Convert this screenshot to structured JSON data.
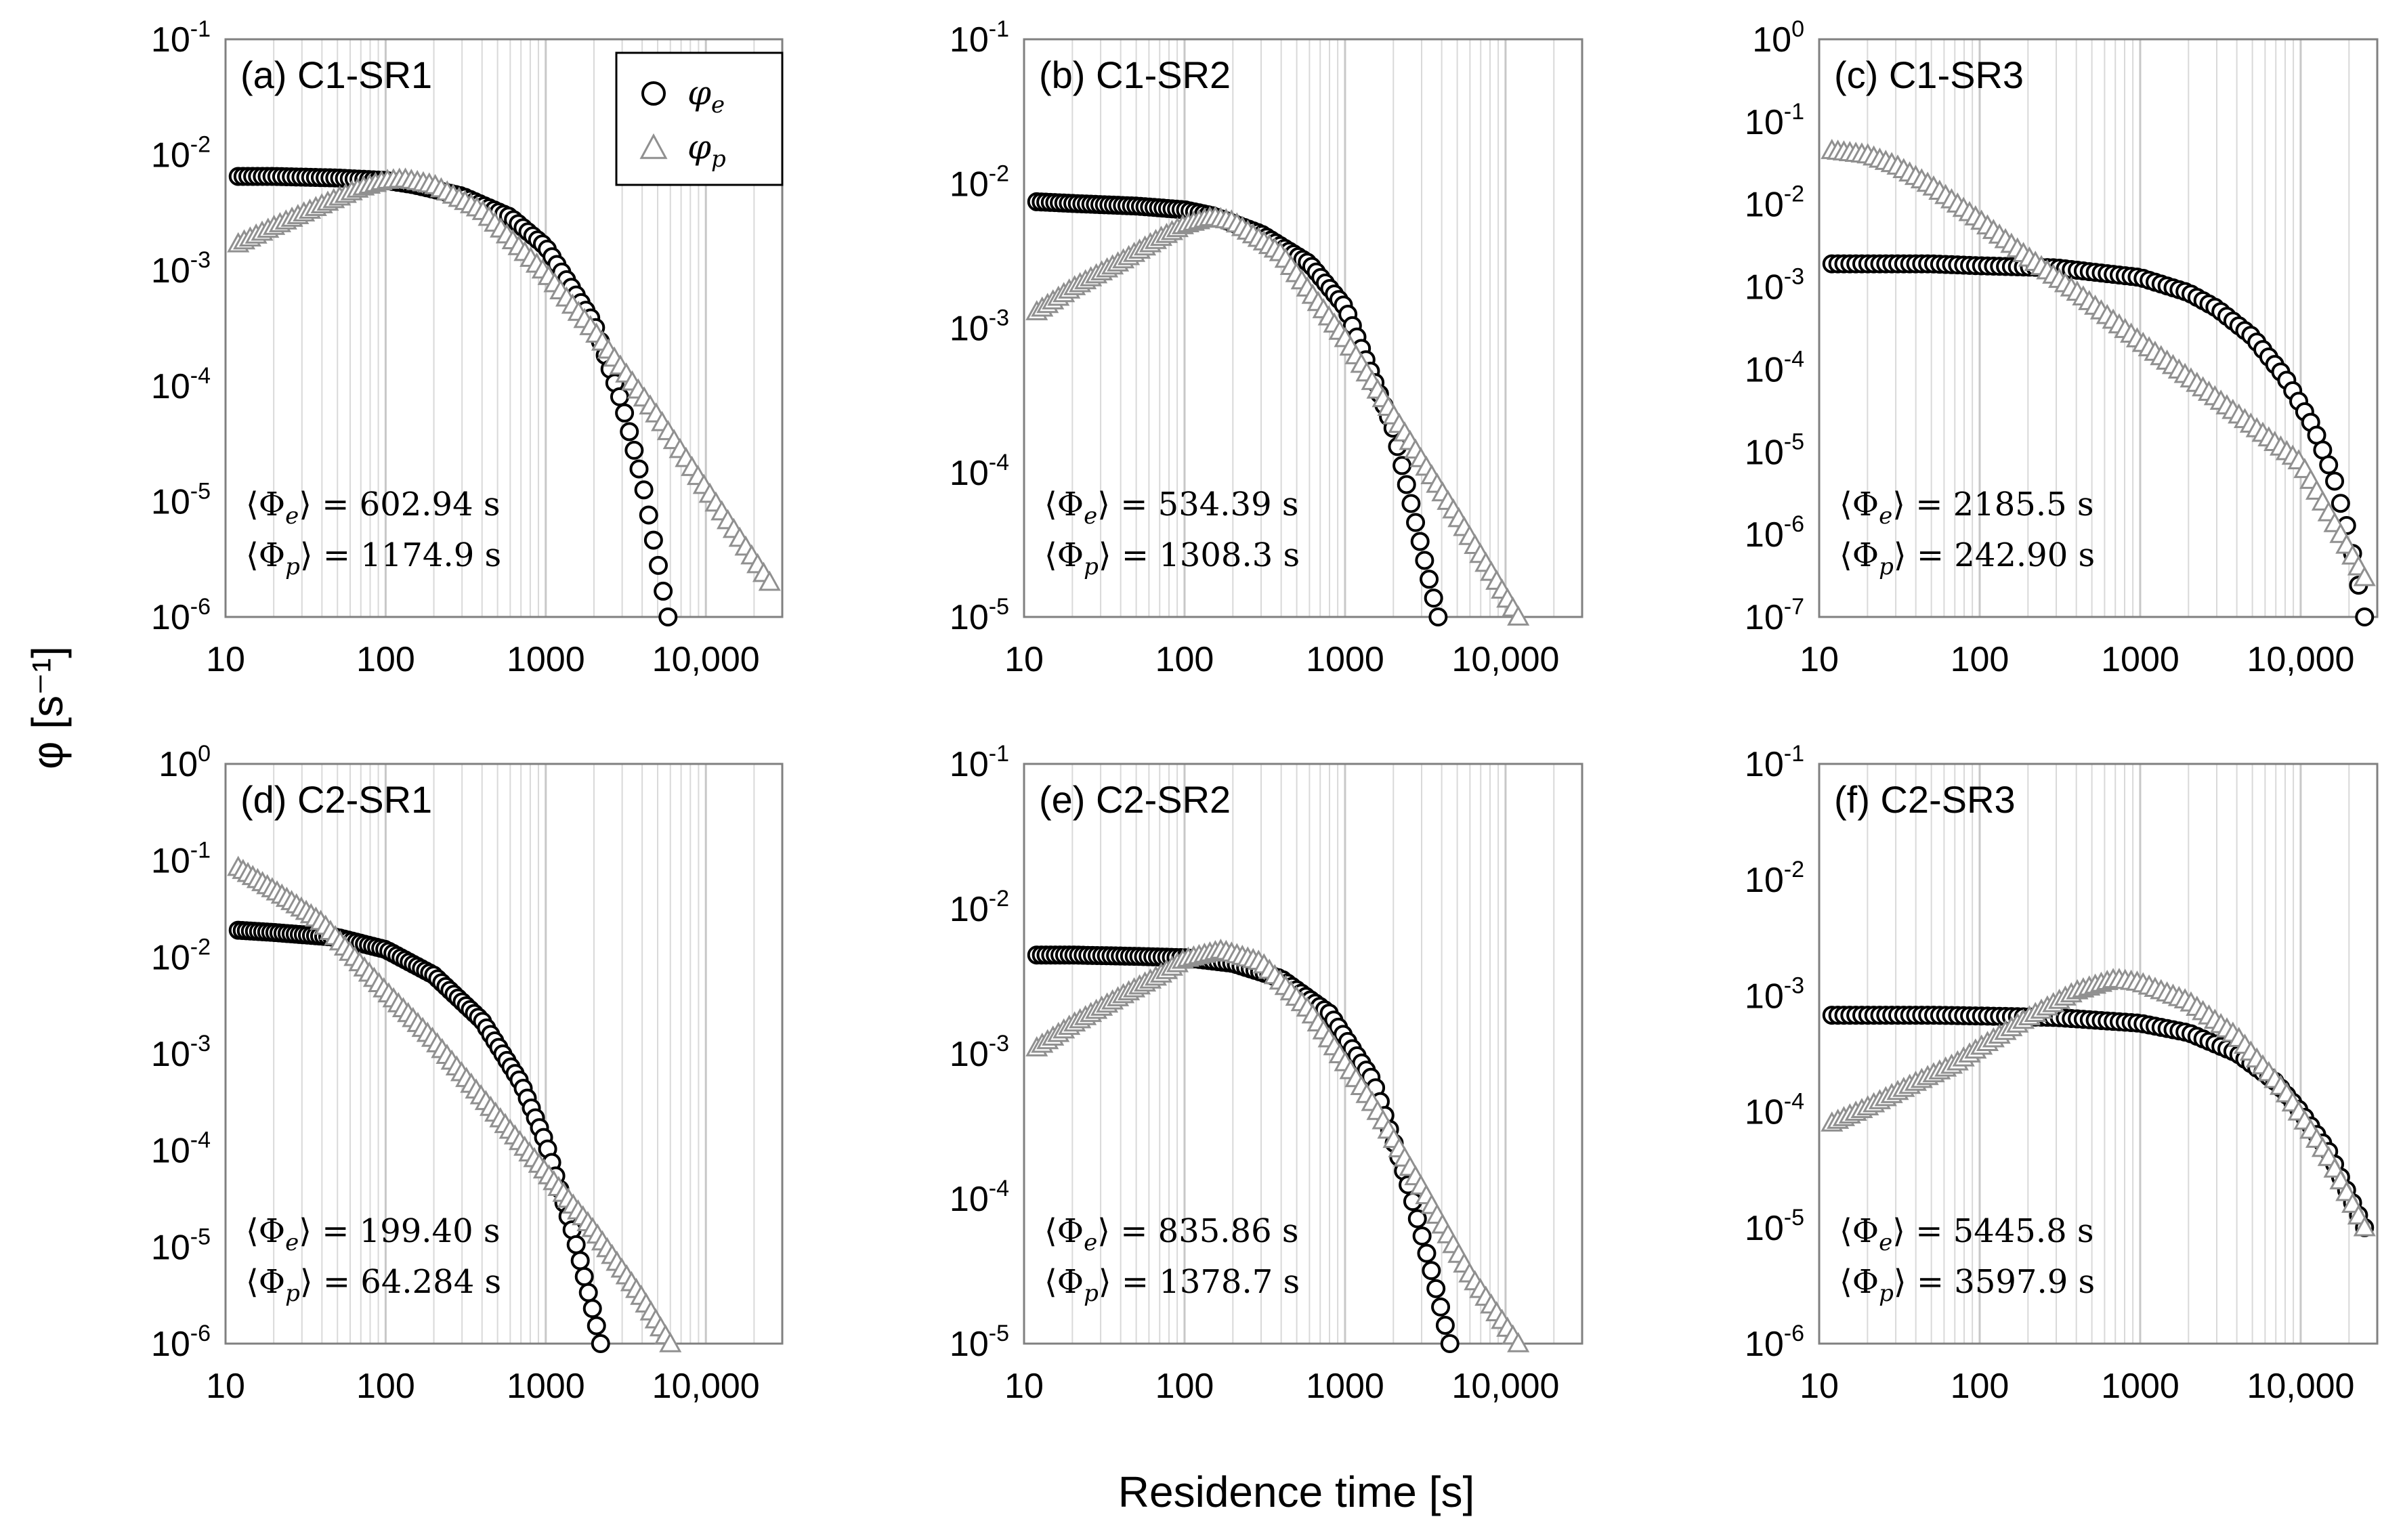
{
  "figure": {
    "xlabel": "Residence time  [s]",
    "ylabel": "φ [s⁻¹]",
    "legend": [
      {
        "key": "phi_e",
        "symbol": "circle",
        "label": "φ",
        "sub": "e"
      },
      {
        "key": "phi_p",
        "symbol": "triangle",
        "label": "φ",
        "sub": "p"
      }
    ],
    "colors": {
      "phi_e": "#000000",
      "phi_p": "#909090",
      "grid": "#d9d9d9",
      "axis": "#808080"
    }
  },
  "chart_data": [
    {
      "type": "scatter",
      "title": "(a) C1-SR1",
      "xscale": "log",
      "xlim": [
        10,
        30000
      ],
      "xticks": [
        "10",
        "100",
        "1000",
        "10,000"
      ],
      "yscale": "log",
      "ylim_exp": [
        -6,
        -1
      ],
      "series": [
        {
          "name": "φe",
          "x": [
            12,
            20,
            50,
            100,
            150,
            300,
            600,
            1000,
            2000,
            3000,
            4000,
            5000,
            5800
          ],
          "y": [
            0.0065,
            0.0065,
            0.0063,
            0.006,
            0.0055,
            0.0044,
            0.0029,
            0.0016,
            0.00035,
            7e-05,
            1.5e-05,
            3e-06,
            1e-06
          ]
        },
        {
          "name": "φp",
          "x": [
            12,
            20,
            40,
            70,
            100,
            130,
            200,
            400,
            1000,
            2000,
            5000,
            10000,
            25000
          ],
          "y": [
            0.0017,
            0.0024,
            0.0037,
            0.0052,
            0.006,
            0.0062,
            0.0055,
            0.0033,
            0.00095,
            0.0003,
            5.5e-05,
            1.3e-05,
            2e-06
          ]
        }
      ],
      "annotations": [
        {
          "sym": "Φ",
          "sub": "e",
          "value": "602.94 s"
        },
        {
          "sym": "Φ",
          "sub": "p",
          "value": "1174.9 s"
        }
      ],
      "legend_placement": "top-right"
    },
    {
      "type": "scatter",
      "title": "(b) C1-SR2",
      "xscale": "log",
      "xlim": [
        10,
        30000
      ],
      "xticks": [
        "10",
        "100",
        "1000",
        "10,000"
      ],
      "yscale": "log",
      "ylim_exp": [
        -5,
        -1
      ],
      "series": [
        {
          "name": "φe",
          "x": [
            12,
            20,
            50,
            100,
            150,
            300,
            600,
            1000,
            2000,
            3000,
            3800
          ],
          "y": [
            0.0075,
            0.0073,
            0.007,
            0.0066,
            0.006,
            0.0045,
            0.0028,
            0.0014,
            0.0002,
            3e-05,
            1e-05
          ]
        },
        {
          "name": "φp",
          "x": [
            12,
            20,
            40,
            70,
            100,
            150,
            200,
            400,
            1000,
            2000,
            5000,
            12000
          ],
          "y": [
            0.0013,
            0.0019,
            0.0029,
            0.0042,
            0.0052,
            0.0059,
            0.0055,
            0.0033,
            0.00085,
            0.00025,
            5e-05,
            1e-05
          ]
        }
      ],
      "annotations": [
        {
          "sym": "Φ",
          "sub": "e",
          "value": "534.39 s"
        },
        {
          "sym": "Φ",
          "sub": "p",
          "value": "1308.3 s"
        }
      ]
    },
    {
      "type": "scatter",
      "title": "(c) C1-SR3",
      "xscale": "log",
      "xlim": [
        10,
        30000
      ],
      "xticks": [
        "10",
        "100",
        "1000",
        "10,000"
      ],
      "yscale": "log",
      "ylim_exp": [
        -7,
        0
      ],
      "series": [
        {
          "name": "φe",
          "x": [
            12,
            50,
            100,
            300,
            1000,
            2000,
            3000,
            5000,
            8000,
            12000,
            16000,
            20000,
            25000
          ],
          "y": [
            0.0019,
            0.0019,
            0.0018,
            0.0017,
            0.0013,
            0.00085,
            0.00055,
            0.00025,
            8e-05,
            2e-05,
            5e-06,
            1e-06,
            1e-07
          ]
        },
        {
          "name": "φp",
          "x": [
            12,
            20,
            30,
            50,
            100,
            200,
            400,
            1000,
            3000,
            10000,
            25000
          ],
          "y": [
            0.045,
            0.04,
            0.03,
            0.017,
            0.0065,
            0.0023,
            0.00088,
            0.00022,
            4.5e-05,
            7.5e-06,
            3e-07
          ]
        }
      ],
      "annotations": [
        {
          "sym": "Φ",
          "sub": "e",
          "value": "2185.5 s"
        },
        {
          "sym": "Φ",
          "sub": "p",
          "value": "242.90 s"
        }
      ]
    },
    {
      "type": "scatter",
      "title": "(d) C2-SR1",
      "xscale": "log",
      "xlim": [
        10,
        30000
      ],
      "xticks": [
        "10",
        "100",
        "1000",
        "10,000"
      ],
      "yscale": "log",
      "ylim_exp": [
        -6,
        0
      ],
      "series": [
        {
          "name": "φe",
          "x": [
            12,
            20,
            50,
            100,
            200,
            400,
            700,
            1000,
            1500,
            2000,
            2200
          ],
          "y": [
            0.019,
            0.018,
            0.016,
            0.012,
            0.0065,
            0.0022,
            0.0005,
            0.00012,
            1.3e-05,
            2e-06,
            1e-06
          ]
        },
        {
          "name": "φp",
          "x": [
            12,
            20,
            30,
            40,
            70,
            100,
            200,
            500,
            1000,
            2000,
            4000,
            6000
          ],
          "y": [
            0.085,
            0.05,
            0.032,
            0.023,
            0.0085,
            0.0045,
            0.0014,
            0.00023,
            6e-05,
            1.5e-05,
            3e-06,
            1e-06
          ]
        }
      ],
      "annotations": [
        {
          "sym": "Φ",
          "sub": "e",
          "value": "199.40 s"
        },
        {
          "sym": "Φ",
          "sub": "p",
          "value": "64.284 s"
        }
      ]
    },
    {
      "type": "scatter",
      "title": "(e) C2-SR2",
      "xscale": "log",
      "xlim": [
        10,
        30000
      ],
      "xticks": [
        "10",
        "100",
        "1000",
        "10,000"
      ],
      "yscale": "log",
      "ylim_exp": [
        -5,
        -1
      ],
      "series": [
        {
          "name": "φe",
          "x": [
            12,
            20,
            50,
            100,
            200,
            400,
            800,
            1500,
            2500,
            3500,
            4500
          ],
          "y": [
            0.0048,
            0.0048,
            0.0047,
            0.0046,
            0.0042,
            0.0033,
            0.0019,
            0.00065,
            0.00012,
            3e-05,
            1e-05
          ]
        },
        {
          "name": "φp",
          "x": [
            12,
            20,
            40,
            70,
            100,
            170,
            300,
            600,
            1500,
            3000,
            6000,
            12000
          ],
          "y": [
            0.0011,
            0.0016,
            0.0025,
            0.0035,
            0.0045,
            0.0052,
            0.0043,
            0.002,
            0.00045,
            0.00012,
            3e-05,
            1e-05
          ]
        }
      ],
      "annotations": [
        {
          "sym": "Φ",
          "sub": "e",
          "value": "835.86 s"
        },
        {
          "sym": "Φ",
          "sub": "p",
          "value": "1378.7 s"
        }
      ]
    },
    {
      "type": "scatter",
      "title": "(f) C2-SR3",
      "xscale": "log",
      "xlim": [
        10,
        30000
      ],
      "xticks": [
        "10",
        "100",
        "1000",
        "10,000"
      ],
      "yscale": "log",
      "ylim_exp": [
        -6,
        -1
      ],
      "series": [
        {
          "name": "φe",
          "x": [
            12,
            50,
            100,
            300,
            1000,
            2000,
            4000,
            7000,
            10000,
            15000,
            20000,
            25000
          ],
          "y": [
            0.00068,
            0.00068,
            0.00067,
            0.00065,
            0.00058,
            0.00048,
            0.00032,
            0.00018,
            0.0001,
            4.5e-05,
            1.9e-05,
            1e-05
          ]
        },
        {
          "name": "φp",
          "x": [
            12,
            20,
            40,
            70,
            100,
            200,
            400,
            700,
            1000,
            2000,
            4000,
            8000,
            15000,
            25000
          ],
          "y": [
            8e-05,
            0.00011,
            0.00018,
            0.00026,
            0.00036,
            0.00065,
            0.0011,
            0.0014,
            0.0013,
            0.0009,
            0.00045,
            0.00015,
            4e-05,
            1e-05
          ]
        }
      ],
      "annotations": [
        {
          "sym": "Φ",
          "sub": "e",
          "value": "5445.8 s"
        },
        {
          "sym": "Φ",
          "sub": "p",
          "value": "3597.9 s"
        }
      ]
    }
  ]
}
